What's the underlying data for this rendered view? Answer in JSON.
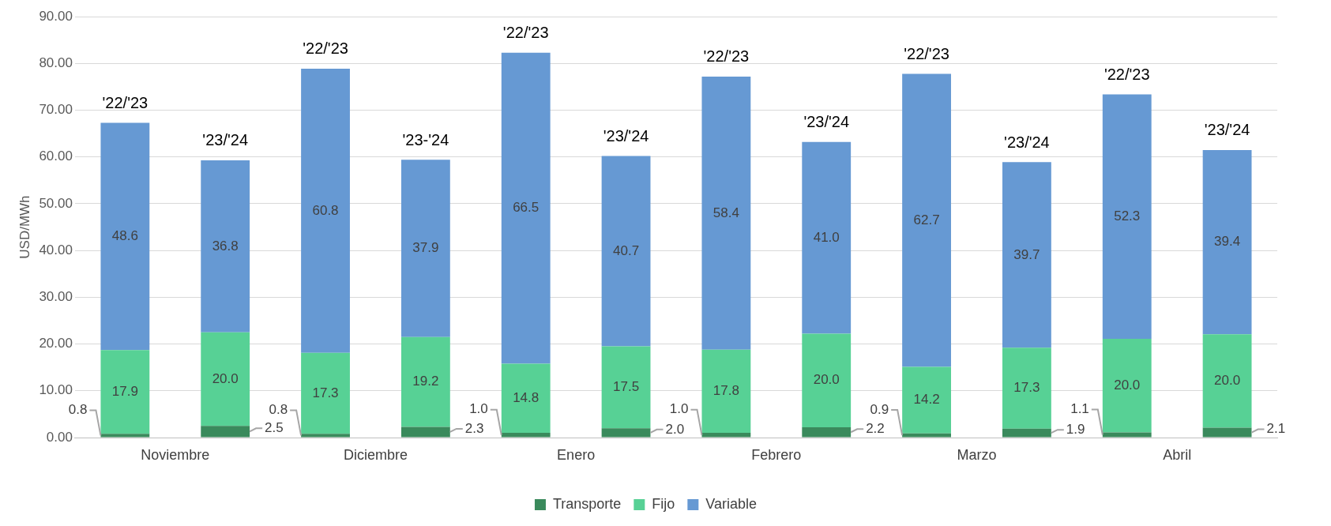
{
  "chart_data": {
    "type": "bar",
    "stacked": true,
    "ylabel": "USD/MWh",
    "categories": [
      "Noviembre",
      null,
      "Diciembre",
      null,
      "Enero",
      null,
      "Febrero",
      null,
      "Marzo",
      null,
      "Abril",
      null
    ],
    "series": [
      {
        "name": "Transporte",
        "color": "#3a8a5c",
        "values": [
          0.8,
          2.5,
          0.8,
          2.3,
          1.0,
          2.0,
          1.0,
          2.2,
          0.9,
          1.9,
          1.1,
          2.1
        ],
        "value_labels": [
          "0.8",
          "2.5",
          "0.8",
          "2.3",
          "1.0",
          "2.0",
          "1.0",
          "2.2",
          "0.9",
          "1.9",
          "1.1",
          "2.1"
        ]
      },
      {
        "name": "Fijo",
        "color": "#57d195",
        "values": [
          17.9,
          20.0,
          17.3,
          19.2,
          14.8,
          17.5,
          17.8,
          20.0,
          14.2,
          17.3,
          20.0,
          20.0
        ],
        "value_labels": [
          "17.9",
          "20.0",
          "17.3",
          "19.2",
          "14.8",
          "17.5",
          "17.8",
          "20.0",
          "14.2",
          "17.3",
          "20.0",
          "20.0"
        ]
      },
      {
        "name": "Variable",
        "color": "#6699d3",
        "values": [
          48.6,
          36.8,
          60.8,
          37.9,
          66.5,
          40.7,
          58.4,
          41.0,
          62.7,
          39.7,
          52.3,
          39.4
        ],
        "value_labels": [
          "48.6",
          "36.8",
          "60.8",
          "37.9",
          "66.5",
          "40.7",
          "58.4",
          "41.0",
          "62.7",
          "39.7",
          "52.3",
          "39.4"
        ]
      }
    ],
    "annotations": [
      "'22/'23",
      "'23/'24",
      "'22/'23",
      "'23-'24",
      "'22/'23",
      "'23/'24",
      "'22/'23",
      "'23/'24",
      "'22/'23",
      "'23/'24",
      "'22/'23",
      "'23/'24"
    ],
    "ylim": [
      0,
      90
    ],
    "yticks": [
      {
        "value": 0,
        "label": "0.00"
      },
      {
        "value": 10,
        "label": "10.00"
      },
      {
        "value": 20,
        "label": "20.00"
      },
      {
        "value": 30,
        "label": "30.00"
      },
      {
        "value": 40,
        "label": "40.00"
      },
      {
        "value": 50,
        "label": "50.00"
      },
      {
        "value": 60,
        "label": "60.00"
      },
      {
        "value": 70,
        "label": "70.00"
      },
      {
        "value": 80,
        "label": "80.00"
      },
      {
        "value": 90,
        "label": "90.00"
      }
    ],
    "grid": "y",
    "legend": "bottom"
  }
}
